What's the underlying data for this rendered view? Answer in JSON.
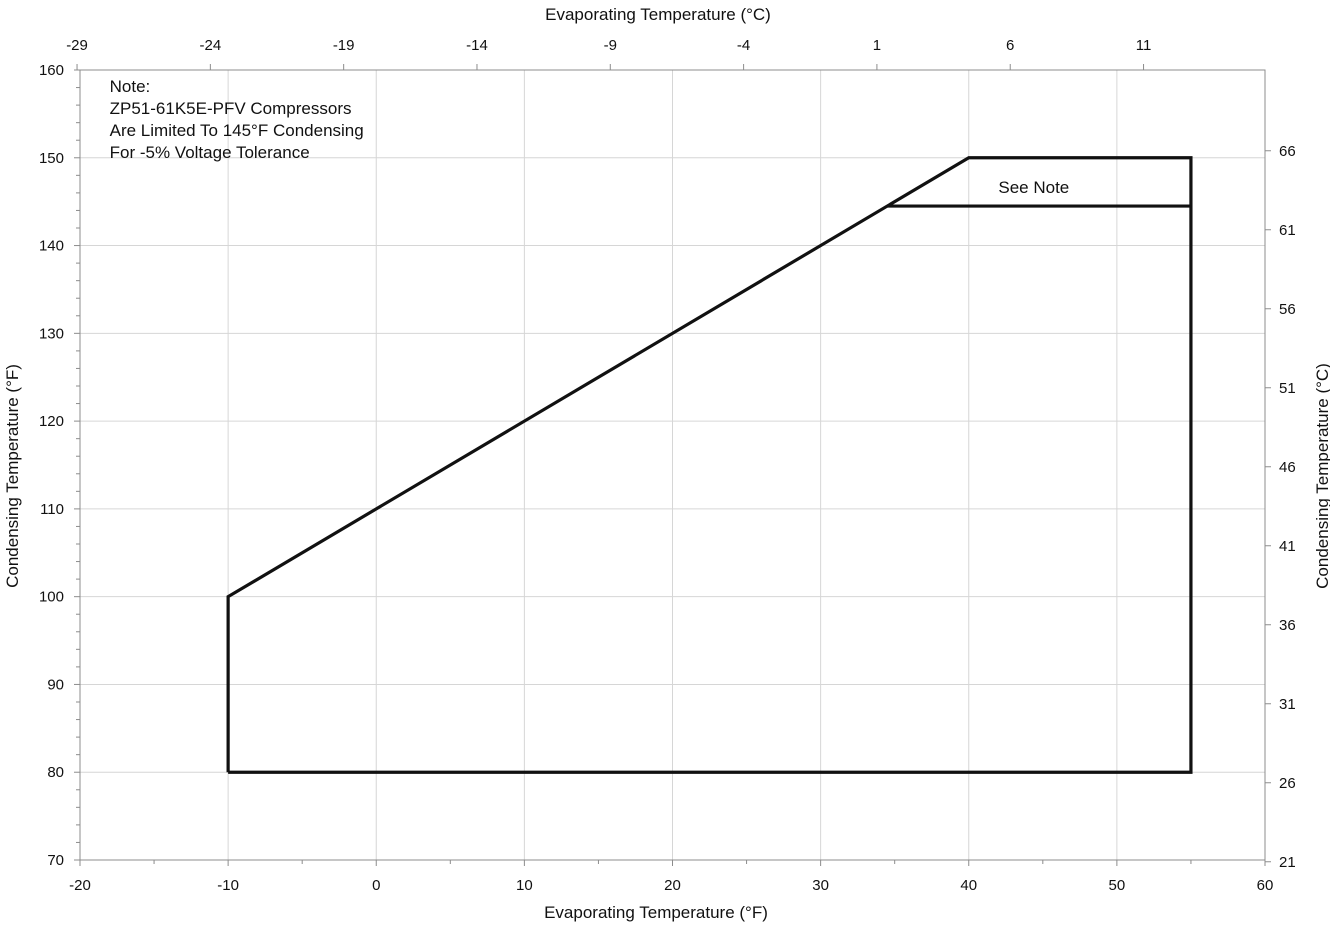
{
  "chart_data": {
    "type": "line",
    "title": "",
    "xlabel_bottom": "Evaporating Temperature (°F)",
    "xlabel_top": "Evaporating Temperature (°C)",
    "ylabel_left": "Condensing Temperature (°F)",
    "ylabel_right": "Condensing Temperature (°C)",
    "xlim": [
      -20,
      60
    ],
    "ylim": [
      70,
      160
    ],
    "x_ticks": [
      "-20",
      "-10",
      "0",
      "10",
      "20",
      "30",
      "40",
      "50",
      "60"
    ],
    "y_ticks": [
      "70",
      "80",
      "90",
      "100",
      "110",
      "120",
      "130",
      "140",
      "150",
      "160"
    ],
    "x_top_ticks": [
      {
        "label": "-29",
        "value": -20.2
      },
      {
        "label": "-24",
        "value": -11.2
      },
      {
        "label": "-19",
        "value": -2.2
      },
      {
        "label": "-14",
        "value": 6.8
      },
      {
        "label": "-9",
        "value": 15.8
      },
      {
        "label": "-4",
        "value": 24.8
      },
      {
        "label": "1",
        "value": 33.8
      },
      {
        "label": "6",
        "value": 42.8
      },
      {
        "label": "11",
        "value": 51.8
      }
    ],
    "y_right_ticks": [
      {
        "label": "21",
        "value": 69.8
      },
      {
        "label": "26",
        "value": 78.8
      },
      {
        "label": "31",
        "value": 87.8
      },
      {
        "label": "36",
        "value": 96.8
      },
      {
        "label": "41",
        "value": 105.8
      },
      {
        "label": "46",
        "value": 114.8
      },
      {
        "label": "51",
        "value": 123.8
      },
      {
        "label": "56",
        "value": 132.8
      },
      {
        "label": "61",
        "value": 141.8
      },
      {
        "label": "66",
        "value": 150.8
      }
    ],
    "grid": true,
    "series": [
      {
        "name": "",
        "points": [
          [
            -10,
            80
          ],
          [
            -10,
            100
          ],
          [
            40,
            150
          ],
          [
            55,
            150
          ],
          [
            55,
            80
          ],
          [
            -10,
            80
          ]
        ]
      },
      {
        "name": "",
        "points": [
          [
            34.5,
            144.5
          ],
          [
            55,
            144.5
          ]
        ]
      }
    ],
    "annotations": [
      {
        "id": "note",
        "lines": [
          "Note:",
          "ZP51-61K5E-PFV Compressors",
          "Are Limited To 145°F Condensing",
          "For -5% Voltage Tolerance"
        ],
        "x": -18,
        "y": 157.5
      },
      {
        "id": "see-note",
        "text": "See Note",
        "x": 42,
        "y": 146
      }
    ]
  }
}
